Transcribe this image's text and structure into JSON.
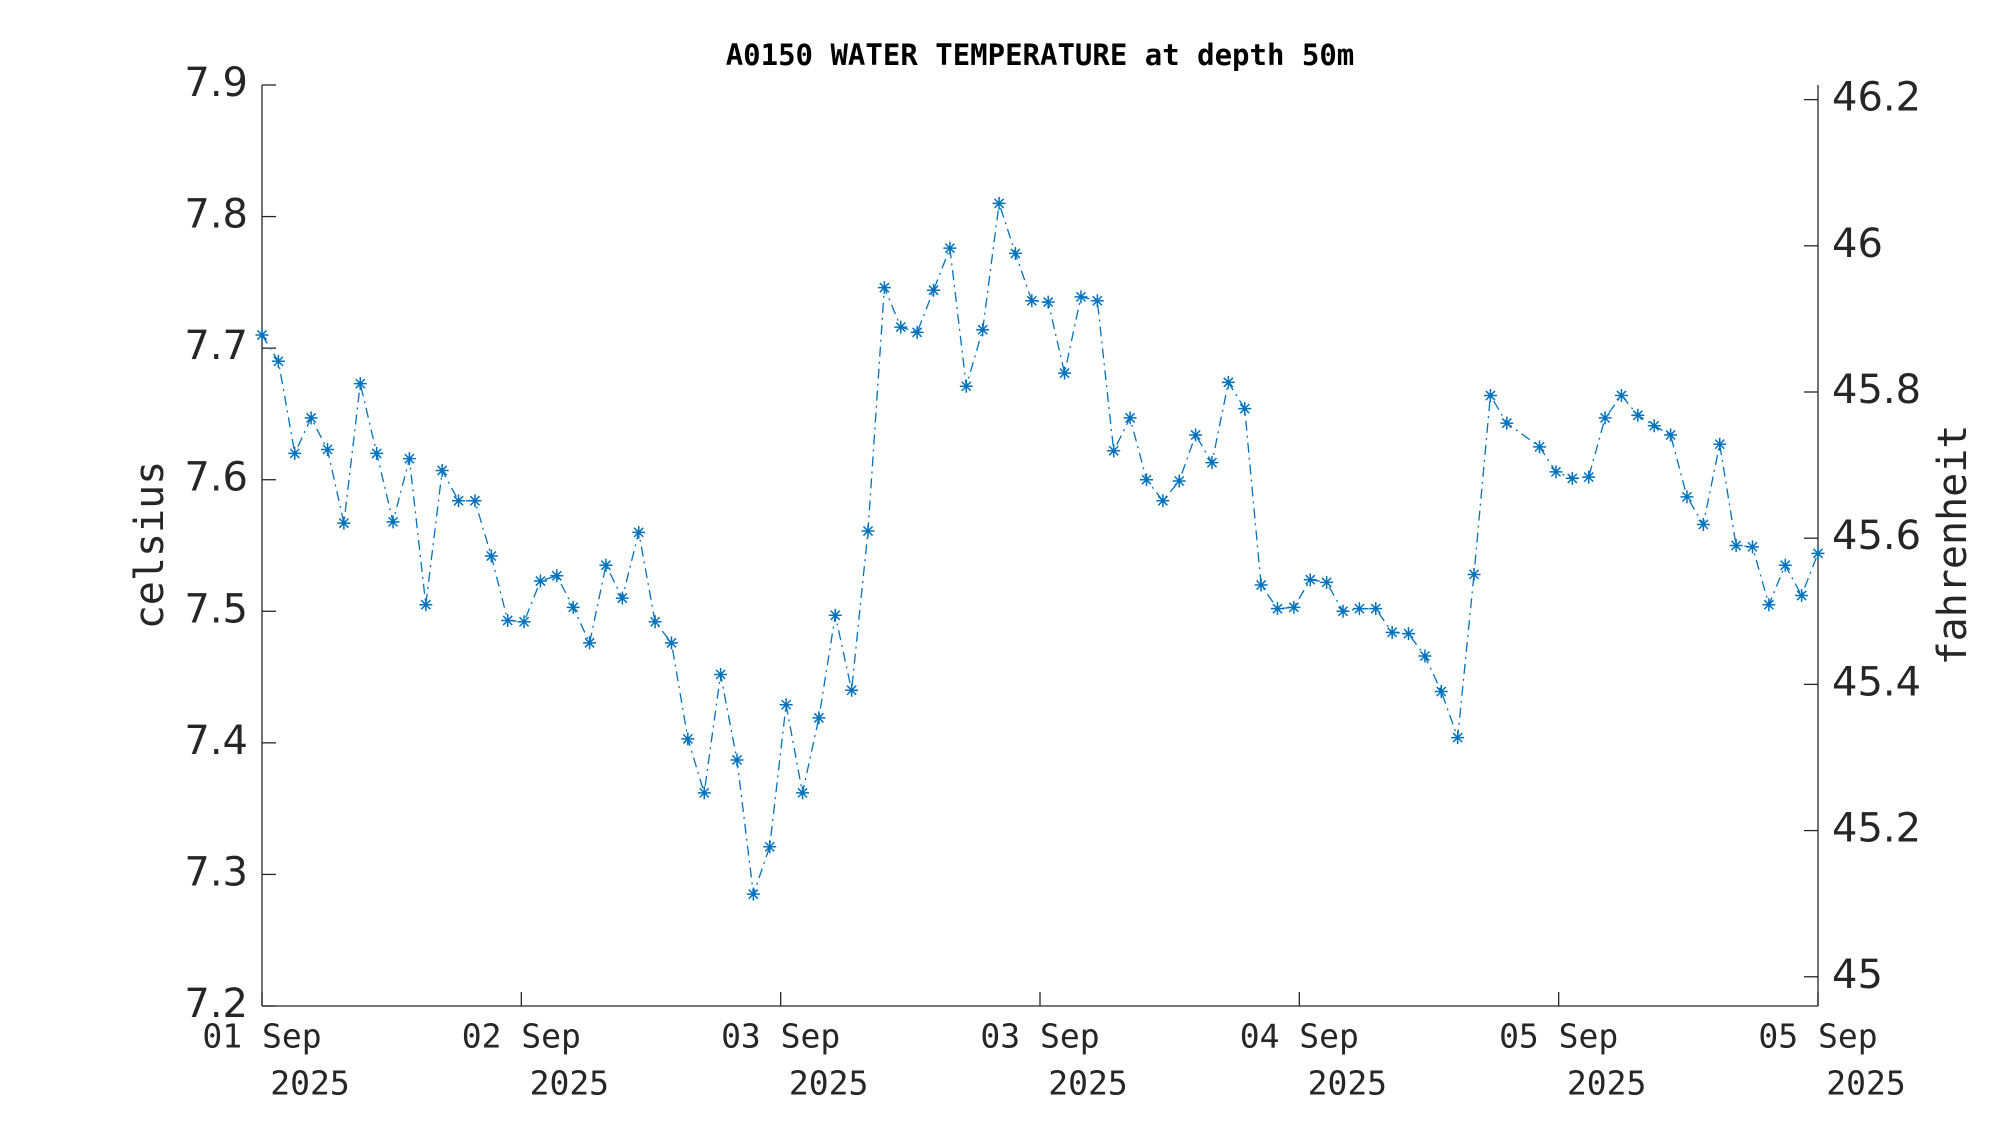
{
  "chart_data": {
    "type": "line",
    "title": "A0150 WATER TEMPERATURE at depth 50m",
    "ylabel": "celsius",
    "y2label": "fahrenheit",
    "color": "#0072bd",
    "line_style": "dash-dot",
    "marker": "asterisk",
    "x": [
      0,
      1,
      2,
      3,
      4,
      5,
      6,
      7,
      8,
      9,
      10,
      11,
      12,
      13,
      14,
      15,
      16,
      17,
      18,
      19,
      20,
      21,
      22,
      23,
      24,
      25,
      26,
      27,
      28,
      29,
      30,
      31,
      32,
      33,
      34,
      35,
      36,
      37,
      38,
      39,
      40,
      41,
      42,
      43,
      44,
      45,
      46,
      47,
      48,
      49,
      50,
      51,
      52,
      53,
      54,
      55,
      56,
      57,
      58,
      59,
      60,
      61,
      62,
      63,
      64,
      65,
      66,
      67,
      68,
      69,
      70,
      71,
      72,
      73,
      74,
      75,
      76,
      78,
      79,
      80,
      81,
      82,
      83,
      84,
      85,
      86,
      87,
      88,
      89,
      90,
      91,
      92,
      93,
      94,
      95
    ],
    "values": [
      7.71,
      7.69,
      7.62,
      7.647,
      7.623,
      7.567,
      7.673,
      7.62,
      7.568,
      7.616,
      7.505,
      7.607,
      7.584,
      7.584,
      7.542,
      7.493,
      7.492,
      7.523,
      7.527,
      7.503,
      7.476,
      7.535,
      7.51,
      7.56,
      7.492,
      7.476,
      7.403,
      7.362,
      7.452,
      7.387,
      7.285,
      7.321,
      7.429,
      7.362,
      7.419,
      7.497,
      7.44,
      7.561,
      7.746,
      7.716,
      7.712,
      7.744,
      7.776,
      7.671,
      7.714,
      7.81,
      7.772,
      7.736,
      7.735,
      7.681,
      7.739,
      7.736,
      7.622,
      7.647,
      7.6,
      7.584,
      7.599,
      7.634,
      7.613,
      7.674,
      7.654,
      7.52,
      7.502,
      7.503,
      7.524,
      7.522,
      7.5,
      7.502,
      7.502,
      7.484,
      7.483,
      7.466,
      7.439,
      7.404,
      7.528,
      7.664,
      7.643,
      7.625,
      7.606,
      7.601,
      7.602,
      7.647,
      7.664,
      7.649,
      7.641,
      7.634,
      7.587,
      7.566,
      7.627,
      7.55,
      7.549,
      7.505,
      7.535,
      7.512,
      7.544
    ],
    "xlim": [
      0,
      95
    ],
    "xticks": [
      {
        "value": 0,
        "label": [
          "01 Sep",
          "2025"
        ]
      },
      {
        "value": 15.833,
        "label": [
          "02 Sep",
          "2025"
        ]
      },
      {
        "value": 31.667,
        "label": [
          "03 Sep",
          "2025"
        ]
      },
      {
        "value": 47.5,
        "label": [
          "03 Sep",
          "2025"
        ]
      },
      {
        "value": 63.333,
        "label": [
          "04 Sep",
          "2025"
        ]
      },
      {
        "value": 79.167,
        "label": [
          "05 Sep",
          "2025"
        ]
      },
      {
        "value": 95,
        "label": [
          "05 Sep",
          "2025"
        ]
      }
    ],
    "ylim": [
      7.2,
      7.9
    ],
    "yticks": [
      7.2,
      7.3,
      7.4,
      7.5,
      7.6,
      7.7,
      7.8,
      7.9
    ],
    "y2lim": [
      44.96,
      46.22
    ],
    "y2ticks": [
      45,
      45.2,
      45.4,
      45.6,
      45.8,
      46,
      46.2
    ]
  }
}
